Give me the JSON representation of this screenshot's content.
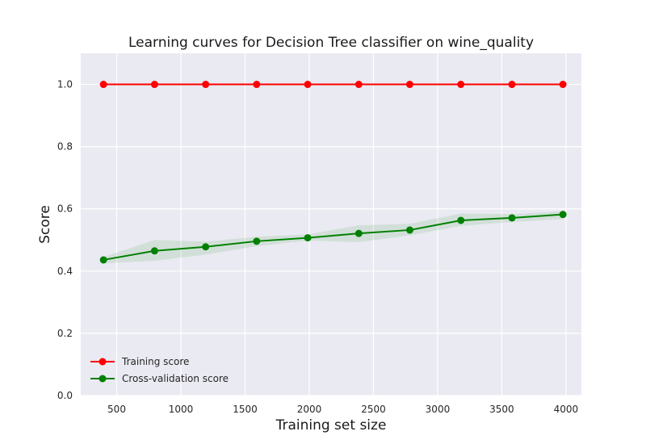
{
  "chart_data": {
    "type": "line",
    "title": "Learning curves for Decision Tree classifier on wine_quality",
    "xlabel": "Training set size",
    "ylabel": "Score",
    "xlim": [
      220,
      4120
    ],
    "ylim": [
      0.0,
      1.1
    ],
    "xticks": [
      500,
      1000,
      1500,
      2000,
      2500,
      3000,
      3500,
      4000
    ],
    "yticks": [
      0.0,
      0.2,
      0.4,
      0.6,
      0.8,
      1.0
    ],
    "ytick_labels": [
      "0.0",
      "0.2",
      "0.4",
      "0.6",
      "0.8",
      "1.0"
    ],
    "grid": true,
    "legend_position": "lower-left",
    "x": [
      397,
      795,
      1193,
      1590,
      1988,
      2386,
      2783,
      3181,
      3579,
      3976
    ],
    "series": [
      {
        "name": "Training score",
        "color": "#ff0000",
        "values": [
          1.0,
          1.0,
          1.0,
          1.0,
          1.0,
          1.0,
          1.0,
          1.0,
          1.0,
          1.0
        ],
        "lower": [
          1.0,
          1.0,
          1.0,
          1.0,
          1.0,
          1.0,
          1.0,
          1.0,
          1.0,
          1.0
        ],
        "upper": [
          1.0,
          1.0,
          1.0,
          1.0,
          1.0,
          1.0,
          1.0,
          1.0,
          1.0,
          1.0
        ]
      },
      {
        "name": "Cross-validation score",
        "color": "#008000",
        "band_color": "#008000",
        "values": [
          0.436,
          0.465,
          0.478,
          0.496,
          0.507,
          0.521,
          0.532,
          0.563,
          0.571,
          0.582
        ],
        "lower": [
          0.425,
          0.433,
          0.453,
          0.48,
          0.498,
          0.493,
          0.515,
          0.545,
          0.558,
          0.567
        ],
        "upper": [
          0.445,
          0.5,
          0.495,
          0.51,
          0.518,
          0.547,
          0.552,
          0.585,
          0.583,
          0.592
        ]
      }
    ]
  }
}
